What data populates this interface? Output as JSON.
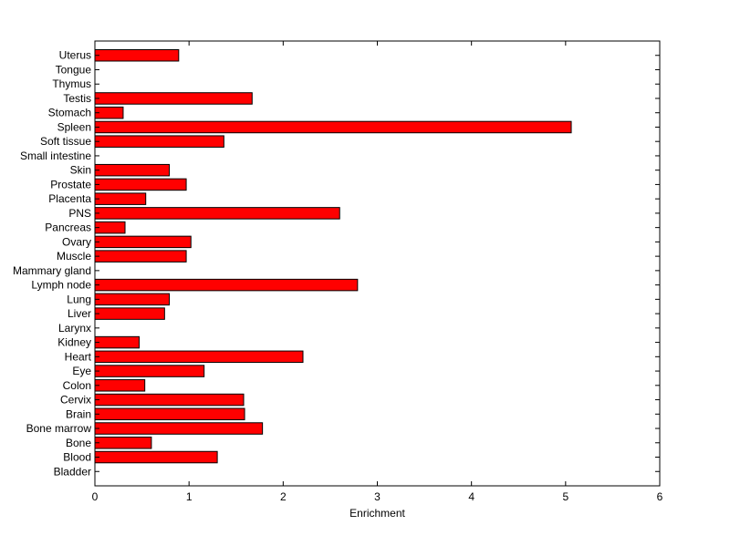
{
  "chart_data": {
    "type": "bar",
    "orientation": "horizontal",
    "xlabel": "Enrichment",
    "ylabel": "",
    "xlim": [
      0,
      6
    ],
    "xticks": [
      0,
      1,
      2,
      3,
      4,
      5,
      6
    ],
    "grid": false,
    "legend": "none",
    "bar_color": "#ff0000",
    "edge_color": "#000000",
    "categories": [
      "Uterus",
      "Tongue",
      "Thymus",
      "Testis",
      "Stomach",
      "Spleen",
      "Soft tissue",
      "Small intestine",
      "Skin",
      "Prostate",
      "Placenta",
      "PNS",
      "Pancreas",
      "Ovary",
      "Muscle",
      "Mammary gland",
      "Lymph node",
      "Lung",
      "Liver",
      "Larynx",
      "Kidney",
      "Heart",
      "Eye",
      "Colon",
      "Cervix",
      "Brain",
      "Bone marrow",
      "Bone",
      "Blood",
      "Bladder"
    ],
    "values": [
      0.89,
      0,
      0,
      1.67,
      0.3,
      5.06,
      1.37,
      0,
      0.79,
      0.97,
      0.54,
      2.6,
      0.32,
      1.02,
      0.97,
      0,
      2.79,
      0.79,
      0.74,
      0,
      0.47,
      2.21,
      1.16,
      0.53,
      1.58,
      1.59,
      1.78,
      0.6,
      1.3,
      0
    ]
  }
}
